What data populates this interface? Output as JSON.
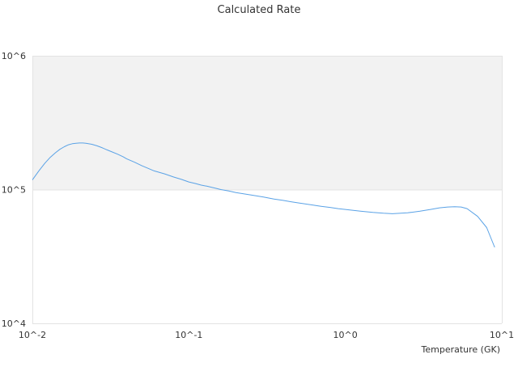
{
  "chart_data": {
    "type": "line",
    "title": "Calculated Rate",
    "xlabel": "Temperature (GK)",
    "ylabel": "",
    "x_scale": "log",
    "y_scale": "log",
    "xlim": [
      0.01,
      10
    ],
    "ylim": [
      10000,
      1000000
    ],
    "x_ticks": [
      "10^-2",
      "10^-1",
      "10^0",
      "10^1"
    ],
    "y_ticks": [
      "10^4",
      "10^5",
      "10^6"
    ],
    "grid": true,
    "band_color": "#f2f2f2",
    "line_color": "#5aa2e6",
    "series": [
      {
        "x": [
          0.01,
          0.011,
          0.012,
          0.013,
          0.014,
          0.015,
          0.016,
          0.017,
          0.018,
          0.019,
          0.02,
          0.021,
          0.022,
          0.024,
          0.026,
          0.028,
          0.03,
          0.032,
          0.035,
          0.038,
          0.04,
          0.045,
          0.05,
          0.055,
          0.06,
          0.07,
          0.08,
          0.09,
          0.1,
          0.11,
          0.12,
          0.13,
          0.14,
          0.15,
          0.16,
          0.18,
          0.2,
          0.25,
          0.3,
          0.35,
          0.4,
          0.45,
          0.5,
          0.6,
          0.7,
          0.8,
          0.9,
          1.0,
          1.25,
          1.5,
          1.75,
          2.0,
          2.5,
          3.0,
          3.5,
          4.0,
          4.5,
          5.0,
          5.5,
          6.0,
          7.0,
          8.0,
          9.0
        ],
        "y": [
          118000,
          138000,
          157000,
          174000,
          188000,
          200000,
          209000,
          216000,
          220000,
          222000,
          223000,
          223000,
          222000,
          218000,
          212000,
          205000,
          198000,
          192000,
          184000,
          176000,
          170000,
          160000,
          151000,
          144000,
          138000,
          131000,
          124000,
          119000,
          114000,
          111000,
          108000,
          106000,
          104000,
          102000,
          100000,
          97500,
          95000,
          91000,
          88000,
          85000,
          83000,
          81000,
          79500,
          77000,
          75000,
          73500,
          72000,
          71000,
          69000,
          67500,
          66500,
          66000,
          67000,
          69000,
          71000,
          73000,
          74000,
          74500,
          74000,
          72000,
          63000,
          52000,
          37000
        ]
      }
    ]
  }
}
